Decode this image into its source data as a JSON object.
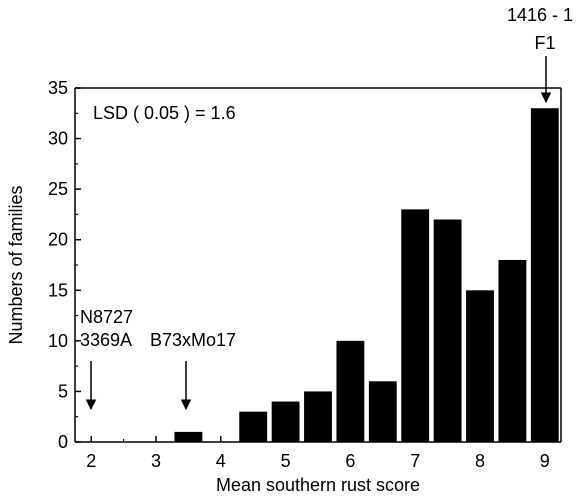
{
  "chart_data": {
    "type": "bar",
    "title": "",
    "xlabel": "Mean southern rust score",
    "ylabel": "Numbers of families",
    "xlim": [
      1.75,
      9.25
    ],
    "ylim": [
      0,
      35
    ],
    "xticks": [
      "2",
      "3",
      "4",
      "5",
      "6",
      "7",
      "8",
      "9"
    ],
    "yticks": [
      "0",
      "5",
      "10",
      "15",
      "20",
      "25",
      "30",
      "35"
    ],
    "grid": false,
    "legend": "none",
    "bar_color": "#000000",
    "bars": [
      {
        "x": 3.5,
        "value": 1
      },
      {
        "x": 4.5,
        "value": 3
      },
      {
        "x": 5.0,
        "value": 4
      },
      {
        "x": 5.5,
        "value": 5
      },
      {
        "x": 6.0,
        "value": 10
      },
      {
        "x": 6.5,
        "value": 6
      },
      {
        "x": 7.0,
        "value": 23
      },
      {
        "x": 7.5,
        "value": 22
      },
      {
        "x": 8.0,
        "value": 15
      },
      {
        "x": 8.5,
        "value": 18
      },
      {
        "x": 9.0,
        "value": 33
      }
    ],
    "annotations": {
      "lsd": "LSD ( 0.05 ) = 1.6",
      "top_right_line1": "1416 - 1",
      "top_right_line2": "F1",
      "left_line1": "N8727",
      "left_line2": "3369A",
      "mid": "B73xMo17"
    },
    "arrow_targets": {
      "f1": {
        "x": 9.0,
        "value": 33
      },
      "n8727": {
        "x": 2.0,
        "value": 0
      },
      "b73": {
        "x": 3.5,
        "value": 1
      }
    }
  }
}
